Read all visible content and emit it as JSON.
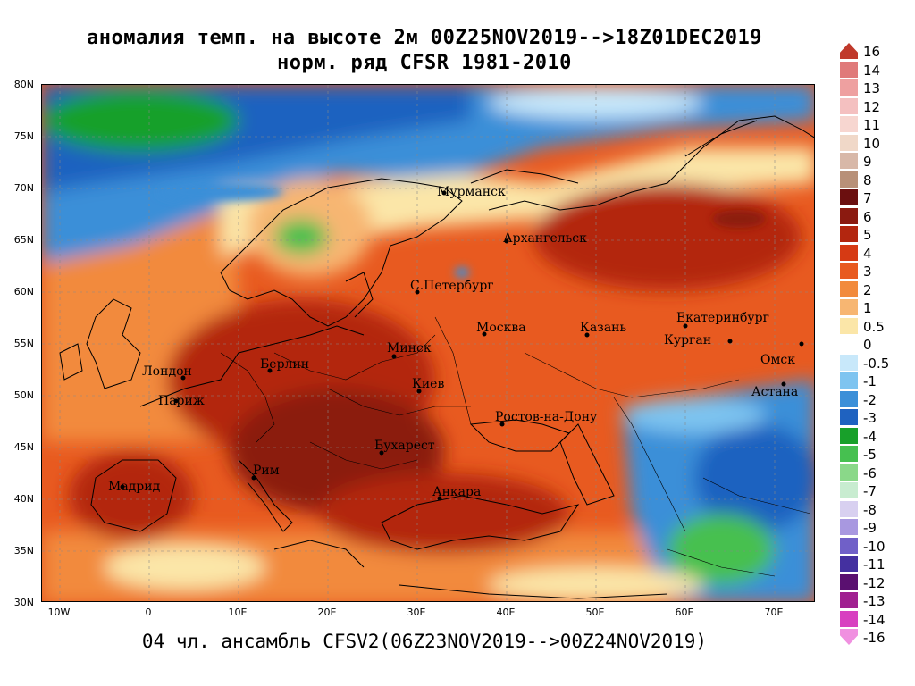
{
  "title_line1": "аномалия темп. на высоте 2м 00Z25NOV2019-->18Z01DEC2019",
  "title_line2": "норм. ряд CFSR 1981-2010",
  "footer": "04 чл. ансамбль CFSV2(06Z23NOV2019-->00Z24NOV2019)",
  "lat_labels": [
    "80N",
    "75N",
    "70N",
    "65N",
    "60N",
    "55N",
    "50N",
    "45N",
    "40N",
    "35N",
    "30N"
  ],
  "lon_labels": [
    "10W",
    "0",
    "10E",
    "20E",
    "30E",
    "40E",
    "50E",
    "60E",
    "70E"
  ],
  "colorbar": {
    "labels": [
      "16",
      "14",
      "13",
      "12",
      "11",
      "10",
      "9",
      "8",
      "7",
      "6",
      "5",
      "4",
      "3",
      "2",
      "1",
      "0.5",
      "0",
      "-0.5",
      "-1",
      "-2",
      "-3",
      "-4",
      "-5",
      "-6",
      "-7",
      "-8",
      "-9",
      "-10",
      "-11",
      "-12",
      "-13",
      "-14",
      "-16"
    ],
    "colors": [
      "#c0392b",
      "#e07a7a",
      "#eea0a0",
      "#f4c0c0",
      "#f7d6d0",
      "#f0d8c8",
      "#d8b8a8",
      "#b89078",
      "#6b0f0f",
      "#8b1a10",
      "#b3260f",
      "#d63a14",
      "#e85a20",
      "#f28a3c",
      "#f7b672",
      "#fbe6a8",
      "#ffffff",
      "#c8e8fa",
      "#7ec4f0",
      "#3b8fd8",
      "#1f62c0",
      "#18a02a",
      "#46c050",
      "#8ad889",
      "#c8ecd0",
      "#d8d0f0",
      "#a898e0",
      "#7060c8",
      "#4430a0",
      "#5a1070",
      "#a02090",
      "#d840c0",
      "#f090e0"
    ]
  },
  "cities": [
    {
      "name": "Мурманск"
    },
    {
      "name": "Архангельск"
    },
    {
      "name": "С.Петербург"
    },
    {
      "name": "Москва"
    },
    {
      "name": "Казань"
    },
    {
      "name": "Екатеринбург"
    },
    {
      "name": "Курган"
    },
    {
      "name": "Омск"
    },
    {
      "name": "Астана"
    },
    {
      "name": "Минск"
    },
    {
      "name": "Киев"
    },
    {
      "name": "Берлин"
    },
    {
      "name": "Лондон"
    },
    {
      "name": "Париж"
    },
    {
      "name": "Ростов-на-Дону"
    },
    {
      "name": "Бухарест"
    },
    {
      "name": "Рим"
    },
    {
      "name": "Мадрид"
    },
    {
      "name": "Анкара"
    }
  ]
}
